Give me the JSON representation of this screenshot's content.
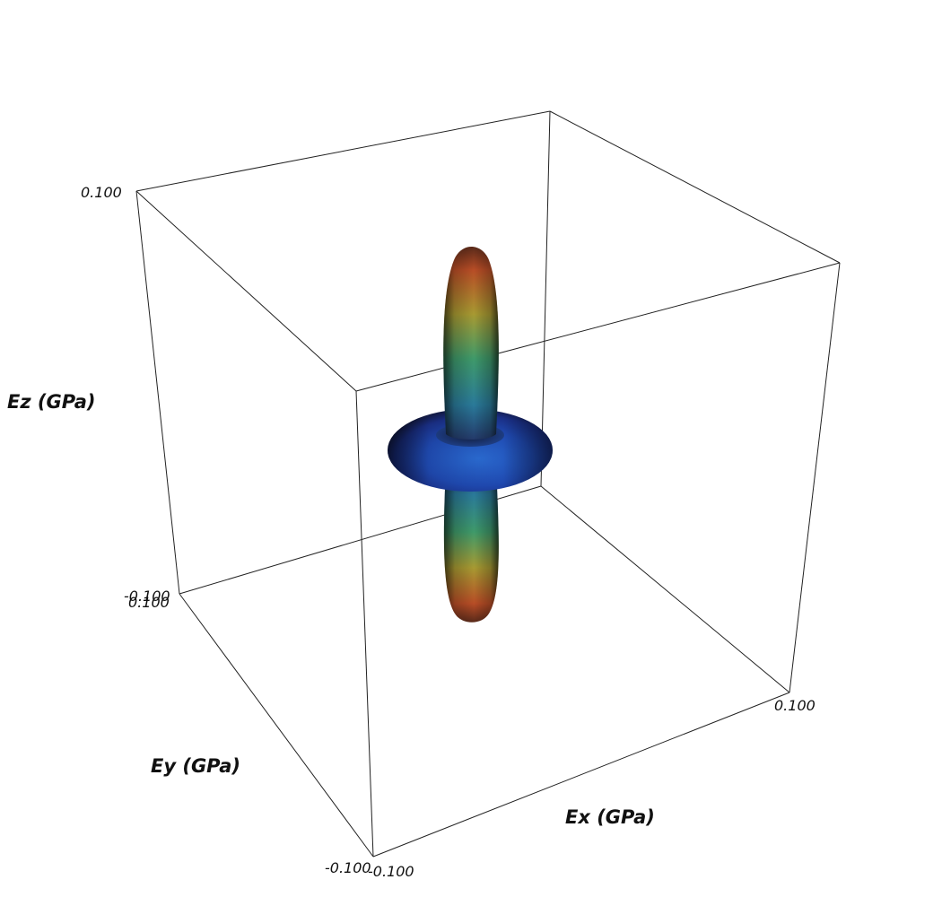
{
  "chart_data": {
    "type": "surface-3d",
    "title": "",
    "axes": {
      "x": {
        "label": "Ex (GPa)",
        "range": [
          -0.1,
          0.1
        ],
        "ticks": [
          "-0.100",
          "0.100"
        ]
      },
      "y": {
        "label": "Ey (GPa)",
        "range": [
          -0.1,
          0.1
        ],
        "ticks": [
          "-0.100",
          "0.100"
        ]
      },
      "z": {
        "label": "Ez (GPa)",
        "range": [
          -0.1,
          0.1
        ],
        "ticks": [
          "-0.100",
          "0.100"
        ]
      }
    },
    "surface": {
      "shape": "vertical dumbbell lobes with equatorial torus",
      "colormap": [
        "#1e2a8c",
        "#1f5fc0",
        "#1aa0a0",
        "#7ab04a",
        "#d2a23a",
        "#c0502a"
      ]
    },
    "bounding_box": true,
    "grid": false,
    "legend": "none"
  }
}
